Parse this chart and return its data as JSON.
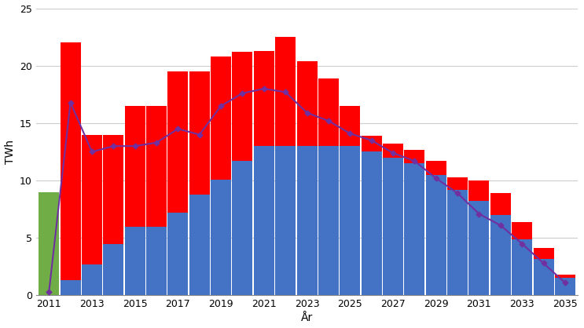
{
  "years": [
    2011,
    2012,
    2013,
    2014,
    2015,
    2016,
    2017,
    2018,
    2019,
    2020,
    2021,
    2022,
    2023,
    2024,
    2025,
    2026,
    2027,
    2028,
    2029,
    2030,
    2031,
    2032,
    2033,
    2034,
    2035
  ],
  "blue_values": [
    0.0,
    1.3,
    2.7,
    4.5,
    6.0,
    6.0,
    7.2,
    8.8,
    10.1,
    11.7,
    13.0,
    13.0,
    13.0,
    13.0,
    13.0,
    12.5,
    12.0,
    11.5,
    10.5,
    9.2,
    8.2,
    7.0,
    4.9,
    3.2,
    1.5
  ],
  "red_values": [
    0.0,
    20.7,
    11.3,
    9.5,
    10.5,
    10.5,
    12.3,
    10.7,
    10.7,
    9.5,
    8.3,
    9.5,
    7.4,
    5.9,
    3.5,
    1.4,
    1.2,
    1.2,
    1.2,
    1.1,
    1.8,
    1.9,
    1.5,
    0.9,
    0.3
  ],
  "green_values": [
    9.0,
    0,
    0,
    0,
    0,
    0,
    0,
    0,
    0,
    0,
    0,
    0,
    0,
    0,
    0,
    0,
    0,
    0,
    0,
    0,
    0,
    0,
    0,
    0,
    0
  ],
  "purple_line": [
    0.3,
    16.8,
    12.5,
    13.0,
    13.0,
    13.3,
    14.5,
    14.0,
    16.5,
    17.6,
    18.0,
    17.7,
    15.9,
    15.2,
    14.1,
    13.5,
    12.4,
    11.7,
    10.2,
    8.9,
    7.1,
    6.1,
    4.5,
    2.8,
    1.1
  ],
  "bar_width": 0.95,
  "blue_color": "#4472C4",
  "red_color": "#FF0000",
  "green_color": "#70AD47",
  "purple_color": "#7030A0",
  "ylabel": "TWh",
  "xlabel": "År",
  "ylim": [
    0,
    25
  ],
  "yticks": [
    0,
    5,
    10,
    15,
    20,
    25
  ],
  "background_color": "#FFFFFF",
  "figwidth": 7.43,
  "figheight": 4.18,
  "dpi": 100
}
